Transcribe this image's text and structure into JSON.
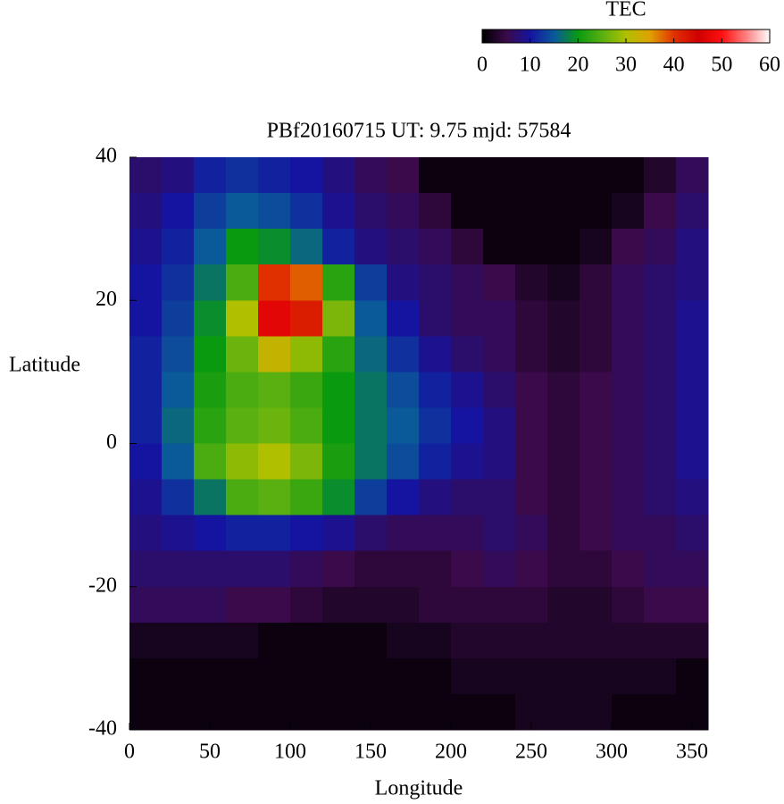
{
  "chart_data": {
    "type": "heatmap",
    "title": "PBf20160715  UT: 9.75  mjd: 57584",
    "xlabel": "Longitude",
    "ylabel": "Latitude",
    "colorbar_label": "TEC",
    "xlim": [
      0,
      360
    ],
    "xticks": [
      0,
      50,
      100,
      150,
      200,
      250,
      300,
      350
    ],
    "ylim": [
      -40,
      40
    ],
    "yticks": [
      -40,
      -20,
      0,
      20,
      40
    ],
    "zlim": [
      0,
      60
    ],
    "zticks": [
      0,
      10,
      20,
      30,
      40,
      50,
      60
    ],
    "colorscale": [
      "#000000",
      "#3a0a4a",
      "#1414a0",
      "#0a5a9a",
      "#0a9a10",
      "#5ab010",
      "#b0c000",
      "#e0a000",
      "#e03000",
      "#d00000",
      "#ff1010",
      "#ff8080",
      "#ffffff"
    ],
    "xbins": [
      0,
      20,
      40,
      60,
      80,
      100,
      120,
      140,
      160,
      180,
      200,
      220,
      240,
      260,
      280,
      300,
      320,
      340,
      360
    ],
    "ybins": [
      40,
      35,
      30,
      25,
      20,
      15,
      10,
      5,
      0,
      -5,
      -10,
      -15,
      -20,
      -25,
      -30,
      -35,
      -40
    ],
    "values": [
      [
        7,
        8,
        11,
        12,
        11,
        10,
        8,
        6,
        5,
        1,
        1,
        1,
        1,
        1,
        1,
        1,
        3,
        6
      ],
      [
        8,
        10,
        13,
        15,
        14,
        12,
        9,
        7,
        6,
        4,
        1,
        1,
        1,
        1,
        1,
        2,
        5,
        7
      ],
      [
        9,
        11,
        15,
        20,
        19,
        16,
        11,
        8,
        7,
        6,
        4,
        1,
        1,
        1,
        2,
        5,
        6,
        8
      ],
      [
        10,
        12,
        17,
        24,
        40,
        38,
        22,
        13,
        8,
        7,
        6,
        5,
        3,
        2,
        4,
        6,
        7,
        8
      ],
      [
        10,
        13,
        19,
        30,
        47,
        42,
        27,
        15,
        10,
        7,
        6,
        6,
        4,
        3,
        4,
        6,
        7,
        9
      ],
      [
        11,
        14,
        20,
        26,
        32,
        28,
        22,
        16,
        12,
        9,
        7,
        6,
        4,
        3,
        4,
        6,
        7,
        9
      ],
      [
        11,
        15,
        21,
        24,
        25,
        23,
        20,
        17,
        14,
        11,
        9,
        7,
        5,
        4,
        5,
        6,
        7,
        9
      ],
      [
        11,
        16,
        22,
        25,
        26,
        24,
        20,
        17,
        15,
        12,
        10,
        8,
        5,
        4,
        5,
        6,
        7,
        9
      ],
      [
        10,
        15,
        24,
        28,
        30,
        27,
        21,
        17,
        14,
        11,
        9,
        8,
        5,
        4,
        5,
        6,
        7,
        9
      ],
      [
        9,
        12,
        17,
        24,
        25,
        23,
        19,
        13,
        10,
        8,
        7,
        7,
        5,
        4,
        5,
        6,
        7,
        8
      ],
      [
        8,
        9,
        10,
        11,
        11,
        10,
        9,
        7,
        6,
        6,
        6,
        7,
        6,
        4,
        5,
        6,
        6,
        7
      ],
      [
        7,
        7,
        7,
        7,
        7,
        6,
        5,
        4,
        4,
        4,
        5,
        6,
        5,
        4,
        4,
        5,
        6,
        6
      ],
      [
        6,
        6,
        6,
        5,
        5,
        4,
        3,
        3,
        3,
        4,
        4,
        4,
        4,
        3,
        3,
        4,
        5,
        5
      ],
      [
        2,
        2,
        2,
        2,
        1,
        1,
        1,
        1,
        2,
        2,
        3,
        3,
        3,
        3,
        3,
        3,
        3,
        3
      ],
      [
        1,
        1,
        1,
        1,
        1,
        1,
        1,
        1,
        1,
        1,
        2,
        2,
        2,
        2,
        2,
        2,
        2,
        1
      ],
      [
        1,
        1,
        1,
        1,
        1,
        1,
        1,
        1,
        1,
        1,
        1,
        1,
        2,
        2,
        2,
        1,
        1,
        1
      ]
    ]
  }
}
